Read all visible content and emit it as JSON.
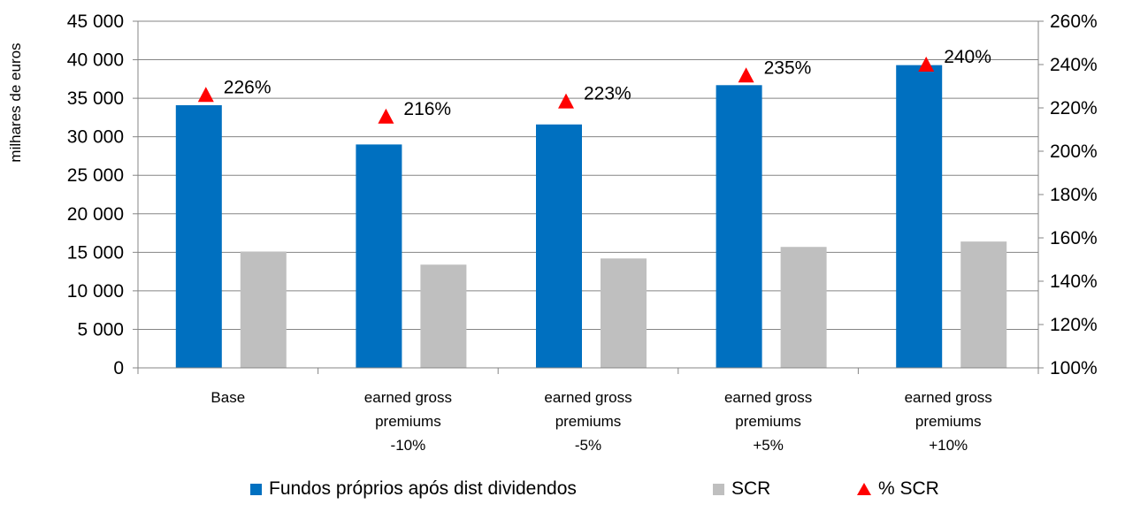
{
  "chart_data": {
    "type": "bar",
    "categories": [
      [
        "Base"
      ],
      [
        "earned gross",
        "premiums",
        "-10%"
      ],
      [
        "earned gross",
        "premiums",
        "-5%"
      ],
      [
        "earned gross",
        "premiums",
        "+5%"
      ],
      [
        "earned gross",
        "premiums",
        "+10%"
      ]
    ],
    "series": [
      {
        "name": "Fundos próprios após dist dividendos",
        "axis": "left",
        "color": "#0070C0",
        "values": [
          34100,
          29000,
          31600,
          36700,
          39300
        ]
      },
      {
        "name": "SCR",
        "axis": "left",
        "color": "#BFBFBF",
        "values": [
          15100,
          13400,
          14200,
          15700,
          16400
        ]
      },
      {
        "name": "% SCR",
        "axis": "right",
        "marker": "triangle",
        "color": "#FF0000",
        "values": [
          226,
          216,
          223,
          235,
          240
        ],
        "labels": [
          "226%",
          "216%",
          "223%",
          "235%",
          "240%"
        ]
      }
    ],
    "ylabel": "milhares de euros",
    "ylim": [
      0,
      45000
    ],
    "y_ticks": [
      0,
      5000,
      10000,
      15000,
      20000,
      25000,
      30000,
      35000,
      40000,
      45000
    ],
    "y_tick_labels": [
      "0",
      "5 000",
      "10 000",
      "15 000",
      "20 000",
      "25 000",
      "30 000",
      "35 000",
      "40 000",
      "45 000"
    ],
    "y2lim": [
      100,
      260
    ],
    "y2_ticks": [
      100,
      120,
      140,
      160,
      180,
      200,
      220,
      240,
      260
    ],
    "y2_tick_labels": [
      "100%",
      "120%",
      "140%",
      "160%",
      "180%",
      "200%",
      "220%",
      "240%",
      "260%"
    ],
    "grid": true,
    "legend_position": "bottom"
  },
  "legend": {
    "items": [
      {
        "label": "Fundos próprios após dist dividendos",
        "color": "#0070C0"
      },
      {
        "label": "SCR",
        "color": "#BFBFBF"
      },
      {
        "label": "% SCR",
        "color": "#FF0000"
      }
    ]
  }
}
